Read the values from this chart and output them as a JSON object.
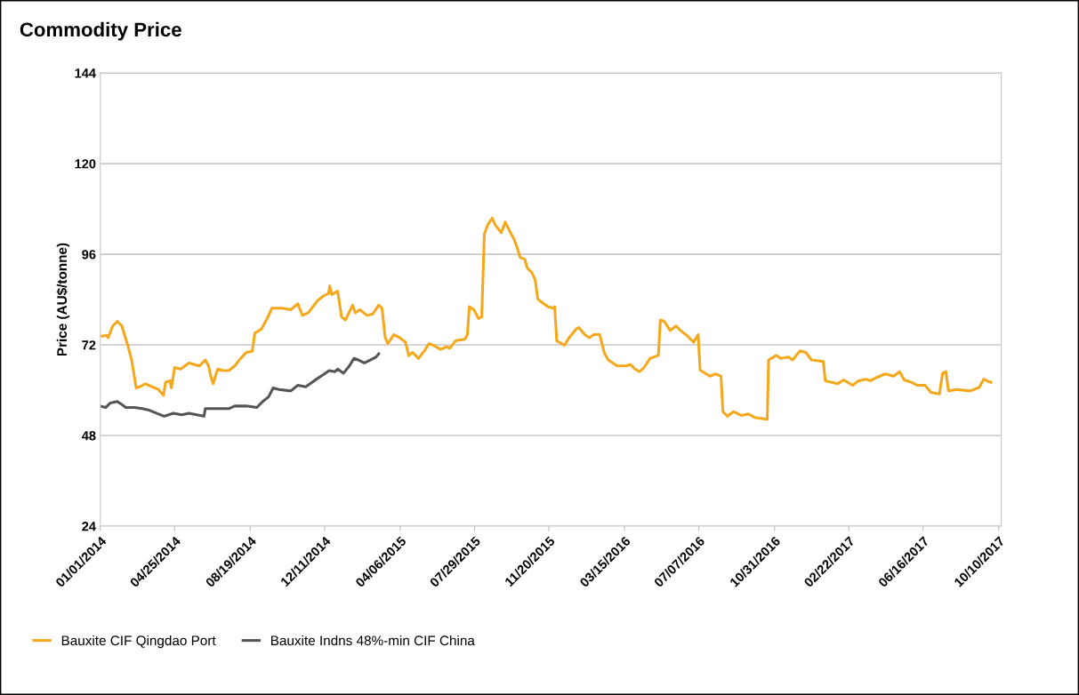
{
  "chart_data": {
    "type": "line",
    "title": "Commodity Price",
    "ylabel": "Price (AU$/tonne)",
    "xlim": [
      "2014-01-01",
      "2017-10-14"
    ],
    "ylim": [
      24,
      144
    ],
    "yticks": [
      24,
      48,
      72,
      96,
      120,
      144
    ],
    "xticks": [
      {
        "value": "2014-01-01",
        "label": "01/01/2014"
      },
      {
        "value": "2014-04-25",
        "label": "04/25/2014"
      },
      {
        "value": "2014-08-19",
        "label": "08/19/2014"
      },
      {
        "value": "2014-12-11",
        "label": "12/11/2014"
      },
      {
        "value": "2015-04-06",
        "label": "04/06/2015"
      },
      {
        "value": "2015-07-29",
        "label": "07/29/2015"
      },
      {
        "value": "2015-11-20",
        "label": "11/20/2015"
      },
      {
        "value": "2016-03-15",
        "label": "03/15/2016"
      },
      {
        "value": "2016-07-07",
        "label": "07/07/2016"
      },
      {
        "value": "2016-10-31",
        "label": "10/31/2016"
      },
      {
        "value": "2017-02-22",
        "label": "02/22/2017"
      },
      {
        "value": "2017-06-16",
        "label": "06/16/2017"
      },
      {
        "value": "2017-10-10",
        "label": "10/10/2017"
      }
    ],
    "grid": "y",
    "legend": "bottom left",
    "marker": "none",
    "line_style": "solid",
    "series": [
      {
        "name": "Bauxite CIF Qingdao Port",
        "color": "#f5a81c",
        "x": [
          "2014-01-01",
          "2014-01-11",
          "2014-01-13",
          "2014-01-20",
          "2014-01-27",
          "2014-02-03",
          "2014-02-07",
          "2014-02-12",
          "2014-02-18",
          "2014-02-25",
          "2014-03-04",
          "2014-03-11",
          "2014-03-20",
          "2014-03-31",
          "2014-04-08",
          "2014-04-11",
          "2014-04-18",
          "2014-04-20",
          "2014-04-25",
          "2014-05-04",
          "2014-05-17",
          "2014-06-02",
          "2014-06-11",
          "2014-06-16",
          "2014-06-20",
          "2014-06-23",
          "2014-06-30",
          "2014-07-08",
          "2014-07-17",
          "2014-07-26",
          "2014-08-04",
          "2014-08-13",
          "2014-08-22",
          "2014-08-26",
          "2014-09-05",
          "2014-09-14",
          "2014-09-21",
          "2014-10-07",
          "2014-10-20",
          "2014-10-31",
          "2014-11-07",
          "2014-11-16",
          "2014-11-30",
          "2014-12-09",
          "2014-12-17",
          "2014-12-19",
          "2014-12-22",
          "2014-12-31",
          "2015-01-06",
          "2015-01-12",
          "2015-01-23",
          "2015-01-27",
          "2015-02-03",
          "2015-02-14",
          "2015-02-23",
          "2015-03-04",
          "2015-03-09",
          "2015-03-14",
          "2015-03-18",
          "2015-03-27",
          "2015-04-05",
          "2015-04-14",
          "2015-04-19",
          "2015-04-25",
          "2015-05-04",
          "2015-05-13",
          "2015-05-20",
          "2015-05-27",
          "2015-06-07",
          "2015-06-16",
          "2015-06-21",
          "2015-06-30",
          "2015-07-14",
          "2015-07-18",
          "2015-07-21",
          "2015-07-28",
          "2015-08-04",
          "2015-08-09",
          "2015-08-13",
          "2015-08-18",
          "2015-08-25",
          "2015-08-30",
          "2015-09-08",
          "2015-09-14",
          "2015-09-21",
          "2015-09-28",
          "2015-10-03",
          "2015-10-07",
          "2015-10-14",
          "2015-10-18",
          "2015-10-25",
          "2015-10-30",
          "2015-11-03",
          "2015-11-12",
          "2015-11-19",
          "2015-11-26",
          "2015-11-29",
          "2015-12-02",
          "2015-12-14",
          "2015-12-21",
          "2016-01-01",
          "2016-01-05",
          "2016-01-14",
          "2016-01-21",
          "2016-01-28",
          "2016-02-06",
          "2016-02-13",
          "2016-02-19",
          "2016-03-04",
          "2016-03-17",
          "2016-03-24",
          "2016-03-31",
          "2016-04-07",
          "2016-04-14",
          "2016-04-23",
          "2016-05-06",
          "2016-05-09",
          "2016-05-15",
          "2016-05-24",
          "2016-06-02",
          "2016-06-11",
          "2016-06-20",
          "2016-06-29",
          "2016-07-06",
          "2016-07-09",
          "2016-07-24",
          "2016-08-02",
          "2016-08-10",
          "2016-08-13",
          "2016-08-20",
          "2016-08-29",
          "2016-09-10",
          "2016-09-21",
          "2016-10-02",
          "2016-10-20",
          "2016-10-22",
          "2016-11-03",
          "2016-11-10",
          "2016-11-21",
          "2016-11-28",
          "2016-12-09",
          "2016-12-18",
          "2016-12-27",
          "2017-01-14",
          "2017-01-17",
          "2017-02-05",
          "2017-02-14",
          "2017-02-28",
          "2017-03-09",
          "2017-03-20",
          "2017-03-27",
          "2017-04-05",
          "2017-04-19",
          "2017-05-02",
          "2017-05-11",
          "2017-05-18",
          "2017-05-29",
          "2017-06-07",
          "2017-06-19",
          "2017-06-28",
          "2017-07-11",
          "2017-07-16",
          "2017-07-21",
          "2017-07-25",
          "2017-08-07",
          "2017-08-27",
          "2017-09-10",
          "2017-09-17",
          "2017-09-24",
          "2017-09-28"
        ],
        "values": [
          74.3,
          74.5,
          73.9,
          77.0,
          78.2,
          77.0,
          74.7,
          71.9,
          68.0,
          60.6,
          61.0,
          61.7,
          61.0,
          60.2,
          58.6,
          62.1,
          62.5,
          60.6,
          66.0,
          65.6,
          67.2,
          66.4,
          68.0,
          66.4,
          63.3,
          61.7,
          65.6,
          65.2,
          65.2,
          66.4,
          68.4,
          70.0,
          70.3,
          75.1,
          76.2,
          79.0,
          81.7,
          81.7,
          81.3,
          82.9,
          79.8,
          80.5,
          83.7,
          84.9,
          85.6,
          87.6,
          85.3,
          86.2,
          79.4,
          78.6,
          82.5,
          80.5,
          81.3,
          79.8,
          80.2,
          82.5,
          81.7,
          73.9,
          72.3,
          74.7,
          73.9,
          72.7,
          69.2,
          70.0,
          68.4,
          70.4,
          72.3,
          71.9,
          70.8,
          71.5,
          71.1,
          73.1,
          73.5,
          74.7,
          82.1,
          81.3,
          79.0,
          79.4,
          101.3,
          103.7,
          105.6,
          103.7,
          101.7,
          104.5,
          102.1,
          99.8,
          97.4,
          95.1,
          94.7,
          92.3,
          91.1,
          89.2,
          84.1,
          82.9,
          82.1,
          81.7,
          82.1,
          73.1,
          71.9,
          73.9,
          76.2,
          76.6,
          74.7,
          73.9,
          74.7,
          74.7,
          69.9,
          68.0,
          66.4,
          66.4,
          66.8,
          65.6,
          64.9,
          66.0,
          68.4,
          69.2,
          78.6,
          78.2,
          75.8,
          77.0,
          75.5,
          74.3,
          72.7,
          74.7,
          65.3,
          63.7,
          64.3,
          63.7,
          54.3,
          53.1,
          54.3,
          53.3,
          53.7,
          52.7,
          52.3,
          68.0,
          69.2,
          68.4,
          68.8,
          68.0,
          70.4,
          70.0,
          68.0,
          67.6,
          62.5,
          61.7,
          62.7,
          61.3,
          62.5,
          62.9,
          62.5,
          63.3,
          64.3,
          63.7,
          64.9,
          62.7,
          62.1,
          61.3,
          61.3,
          59.4,
          59.0,
          64.5,
          64.9,
          59.8,
          60.2,
          59.8,
          60.7,
          62.9,
          62.3,
          62.1
        ]
      },
      {
        "name": "Bauxite Indns 48%-min CIF China",
        "color": "#555555",
        "x": [
          "2014-01-01",
          "2014-01-09",
          "2014-01-16",
          "2014-01-27",
          "2014-02-03",
          "2014-02-09",
          "2014-02-23",
          "2014-03-06",
          "2014-03-17",
          "2014-03-28",
          "2014-04-09",
          "2014-04-23",
          "2014-05-06",
          "2014-05-17",
          "2014-05-29",
          "2014-06-09",
          "2014-06-11",
          "2014-06-20",
          "2014-07-04",
          "2014-07-17",
          "2014-07-26",
          "2014-08-13",
          "2014-08-29",
          "2014-09-07",
          "2014-09-16",
          "2014-09-23",
          "2014-10-02",
          "2014-10-20",
          "2014-10-31",
          "2014-11-12",
          "2014-11-25",
          "2014-12-09",
          "2014-12-18",
          "2014-12-27",
          "2014-12-31",
          "2015-01-09",
          "2015-01-18",
          "2015-01-25",
          "2015-02-01",
          "2015-02-10",
          "2015-02-19",
          "2015-02-28",
          "2015-03-04"
        ],
        "values": [
          55.8,
          55.4,
          56.6,
          57.0,
          56.2,
          55.4,
          55.4,
          55.1,
          54.7,
          53.9,
          53.1,
          53.9,
          53.5,
          53.9,
          53.5,
          53.1,
          55.1,
          55.1,
          55.1,
          55.1,
          55.8,
          55.8,
          55.4,
          57.0,
          58.2,
          60.6,
          60.2,
          59.8,
          61.3,
          60.9,
          62.5,
          64.1,
          65.2,
          64.9,
          65.6,
          64.5,
          66.4,
          68.4,
          68.0,
          67.2,
          68.0,
          68.8,
          69.6
        ]
      }
    ]
  }
}
